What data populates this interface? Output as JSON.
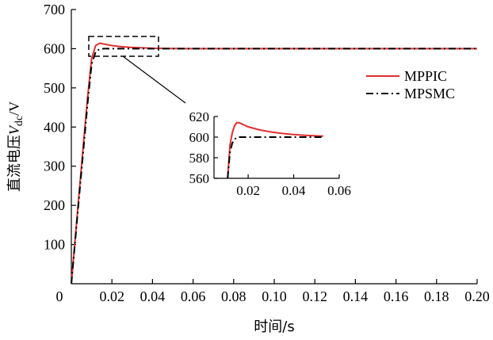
{
  "chart_data": {
    "type": "line",
    "title": "",
    "xlabel": "时间/s",
    "ylabel_prefix": "直流电压",
    "ylabel_var": "V",
    "ylabel_sub": "dc",
    "ylabel_suffix": "/V",
    "xlim": [
      0,
      0.2
    ],
    "ylim": [
      0,
      700
    ],
    "x_ticks": [
      "0",
      "0.02",
      "0.04",
      "0.06",
      "0.08",
      "0.10",
      "0.12",
      "0.14",
      "0.16",
      "0.18",
      "0.20"
    ],
    "y_ticks": [
      "100",
      "200",
      "300",
      "400",
      "500",
      "600",
      "700"
    ],
    "grid": false,
    "legend_position": "right",
    "series": [
      {
        "name": "MPPIC",
        "color": "#e03030",
        "style": "solid",
        "x": [
          0,
          0.002,
          0.004,
          0.006,
          0.008,
          0.01,
          0.012,
          0.014,
          0.016,
          0.02,
          0.025,
          0.03,
          0.04,
          0.05,
          0.06,
          0.08,
          0.1,
          0.12,
          0.14,
          0.16,
          0.18,
          0.2
        ],
        "y": [
          0,
          120,
          240,
          360,
          475,
          575,
          608,
          614,
          612,
          608,
          605,
          603,
          601,
          600.5,
          600,
          600,
          600,
          600,
          600,
          600,
          600,
          600
        ]
      },
      {
        "name": "MPSMC",
        "color": "#000000",
        "style": "dashdot",
        "x": [
          0,
          0.002,
          0.004,
          0.006,
          0.008,
          0.01,
          0.012,
          0.014,
          0.016,
          0.02,
          0.03,
          0.05,
          0.08,
          0.1,
          0.12,
          0.14,
          0.16,
          0.18,
          0.2
        ],
        "y": [
          0,
          115,
          230,
          345,
          460,
          560,
          592,
          599,
          600,
          600,
          600,
          600,
          600,
          600,
          600,
          600,
          600,
          600,
          600
        ]
      }
    ],
    "inset": {
      "xlim": [
        0.005,
        0.06
      ],
      "ylim": [
        560,
        620
      ],
      "x_ticks": [
        "0.02",
        "0.04",
        "0.06"
      ],
      "y_ticks": [
        "560",
        "580",
        "600",
        "620"
      ],
      "series": [
        {
          "name": "MPPIC",
          "x": [
            0.011,
            0.012,
            0.013,
            0.014,
            0.015,
            0.016,
            0.018,
            0.02,
            0.025,
            0.03,
            0.035,
            0.04,
            0.045,
            0.05,
            0.053
          ],
          "y": [
            560,
            592,
            604,
            611,
            614,
            614,
            612,
            610,
            607,
            605,
            603.5,
            602.5,
            601.8,
            601.2,
            601
          ]
        },
        {
          "name": "MPSMC",
          "x": [
            0.011,
            0.012,
            0.013,
            0.014,
            0.015,
            0.016,
            0.018,
            0.02,
            0.03,
            0.04,
            0.05,
            0.053
          ],
          "y": [
            560,
            585,
            594,
            598,
            599.5,
            600,
            600,
            600,
            600,
            600,
            600,
            600
          ]
        }
      ]
    }
  }
}
